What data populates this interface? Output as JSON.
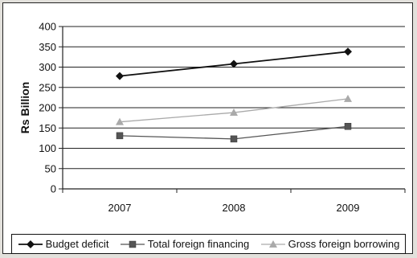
{
  "chart_data": {
    "type": "line",
    "x": [
      "2007",
      "2008",
      "2009"
    ],
    "ylabel": "Rs Billion",
    "ylim": [
      0,
      400
    ],
    "yticks": [
      0,
      50,
      100,
      150,
      200,
      250,
      300,
      350,
      400
    ],
    "grid": true,
    "legend_position": "bottom",
    "series": [
      {
        "name": "Budget deficit",
        "values": [
          278,
          308,
          338
        ],
        "color": "#111111",
        "marker": "diamond"
      },
      {
        "name": "Total foreign financing",
        "values": [
          131,
          123,
          154
        ],
        "color": "#555555",
        "marker": "square"
      },
      {
        "name": "Gross foreign borrowing",
        "values": [
          165,
          188,
          222
        ],
        "color": "#aaaaaa",
        "marker": "triangle"
      }
    ]
  }
}
